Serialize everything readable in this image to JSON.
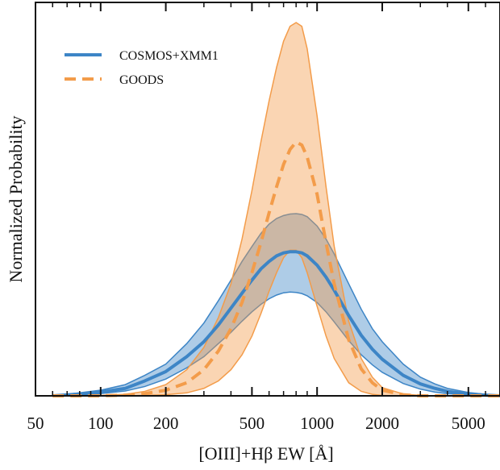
{
  "chart_data": {
    "type": "line",
    "title": "",
    "xlabel": "[OIII]+Hβ EW [Å]",
    "ylabel": "Normalized Probability",
    "xscale": "log",
    "xlim": [
      50,
      7000
    ],
    "ylim": [
      0,
      1.0
    ],
    "grid": false,
    "legend_position": "top-left",
    "x_ticks": [
      50,
      100,
      200,
      500,
      1000,
      2000,
      5000
    ],
    "x_tick_labels": [
      "50",
      "100",
      "200",
      "500",
      "1000",
      "2000",
      "5000"
    ],
    "x": [
      60,
      80,
      100,
      130,
      160,
      200,
      250,
      300,
      350,
      400,
      450,
      500,
      550,
      600,
      650,
      700,
      750,
      800,
      850,
      900,
      1000,
      1100,
      1200,
      1400,
      1600,
      1800,
      2000,
      2500,
      3000,
      3500,
      4000,
      5000,
      6000,
      7000
    ],
    "series": [
      {
        "name": "COSMOS+XMM1",
        "color": "#3d85c6",
        "style": "solid",
        "values": [
          0.0,
          0.005,
          0.01,
          0.02,
          0.04,
          0.065,
          0.105,
          0.145,
          0.19,
          0.235,
          0.275,
          0.31,
          0.34,
          0.36,
          0.375,
          0.383,
          0.386,
          0.386,
          0.383,
          0.375,
          0.35,
          0.318,
          0.283,
          0.215,
          0.162,
          0.125,
          0.098,
          0.055,
          0.032,
          0.02,
          0.012,
          0.005,
          0.002,
          0.0
        ],
        "band_upper": [
          0.0,
          0.008,
          0.015,
          0.03,
          0.055,
          0.085,
          0.14,
          0.195,
          0.255,
          0.31,
          0.36,
          0.4,
          0.435,
          0.46,
          0.475,
          0.483,
          0.487,
          0.488,
          0.486,
          0.48,
          0.455,
          0.42,
          0.38,
          0.3,
          0.232,
          0.18,
          0.145,
          0.085,
          0.05,
          0.032,
          0.02,
          0.009,
          0.004,
          0.0
        ],
        "band_lower": [
          0.0,
          0.003,
          0.006,
          0.013,
          0.025,
          0.045,
          0.075,
          0.105,
          0.14,
          0.17,
          0.2,
          0.225,
          0.245,
          0.26,
          0.27,
          0.276,
          0.278,
          0.277,
          0.274,
          0.268,
          0.25,
          0.225,
          0.198,
          0.148,
          0.11,
          0.083,
          0.063,
          0.033,
          0.018,
          0.01,
          0.006,
          0.002,
          0.001,
          0.0
        ]
      },
      {
        "name": "GOODS",
        "color": "#f39c4a",
        "style": "dashed",
        "values": [
          0.0,
          0.0,
          0.0,
          0.002,
          0.006,
          0.015,
          0.035,
          0.07,
          0.12,
          0.18,
          0.25,
          0.33,
          0.41,
          0.49,
          0.56,
          0.62,
          0.66,
          0.68,
          0.672,
          0.64,
          0.54,
          0.41,
          0.3,
          0.15,
          0.072,
          0.035,
          0.015,
          0.003,
          0.0,
          0.0,
          0.0,
          0.0,
          0.0,
          0.0
        ],
        "band_upper": [
          0.0,
          0.0,
          0.001,
          0.004,
          0.012,
          0.03,
          0.07,
          0.13,
          0.21,
          0.3,
          0.42,
          0.55,
          0.68,
          0.79,
          0.88,
          0.95,
          0.99,
          1.0,
          0.99,
          0.93,
          0.75,
          0.56,
          0.4,
          0.2,
          0.1,
          0.05,
          0.022,
          0.005,
          0.001,
          0.0,
          0.0,
          0.0,
          0.0,
          0.0
        ],
        "band_lower": [
          0.0,
          0.0,
          0.0,
          0.0,
          0.001,
          0.003,
          0.008,
          0.02,
          0.04,
          0.07,
          0.11,
          0.16,
          0.22,
          0.28,
          0.33,
          0.37,
          0.39,
          0.39,
          0.37,
          0.33,
          0.24,
          0.16,
          0.1,
          0.035,
          0.012,
          0.004,
          0.001,
          0.0,
          0.0,
          0.0,
          0.0,
          0.0,
          0.0,
          0.0
        ]
      }
    ]
  }
}
